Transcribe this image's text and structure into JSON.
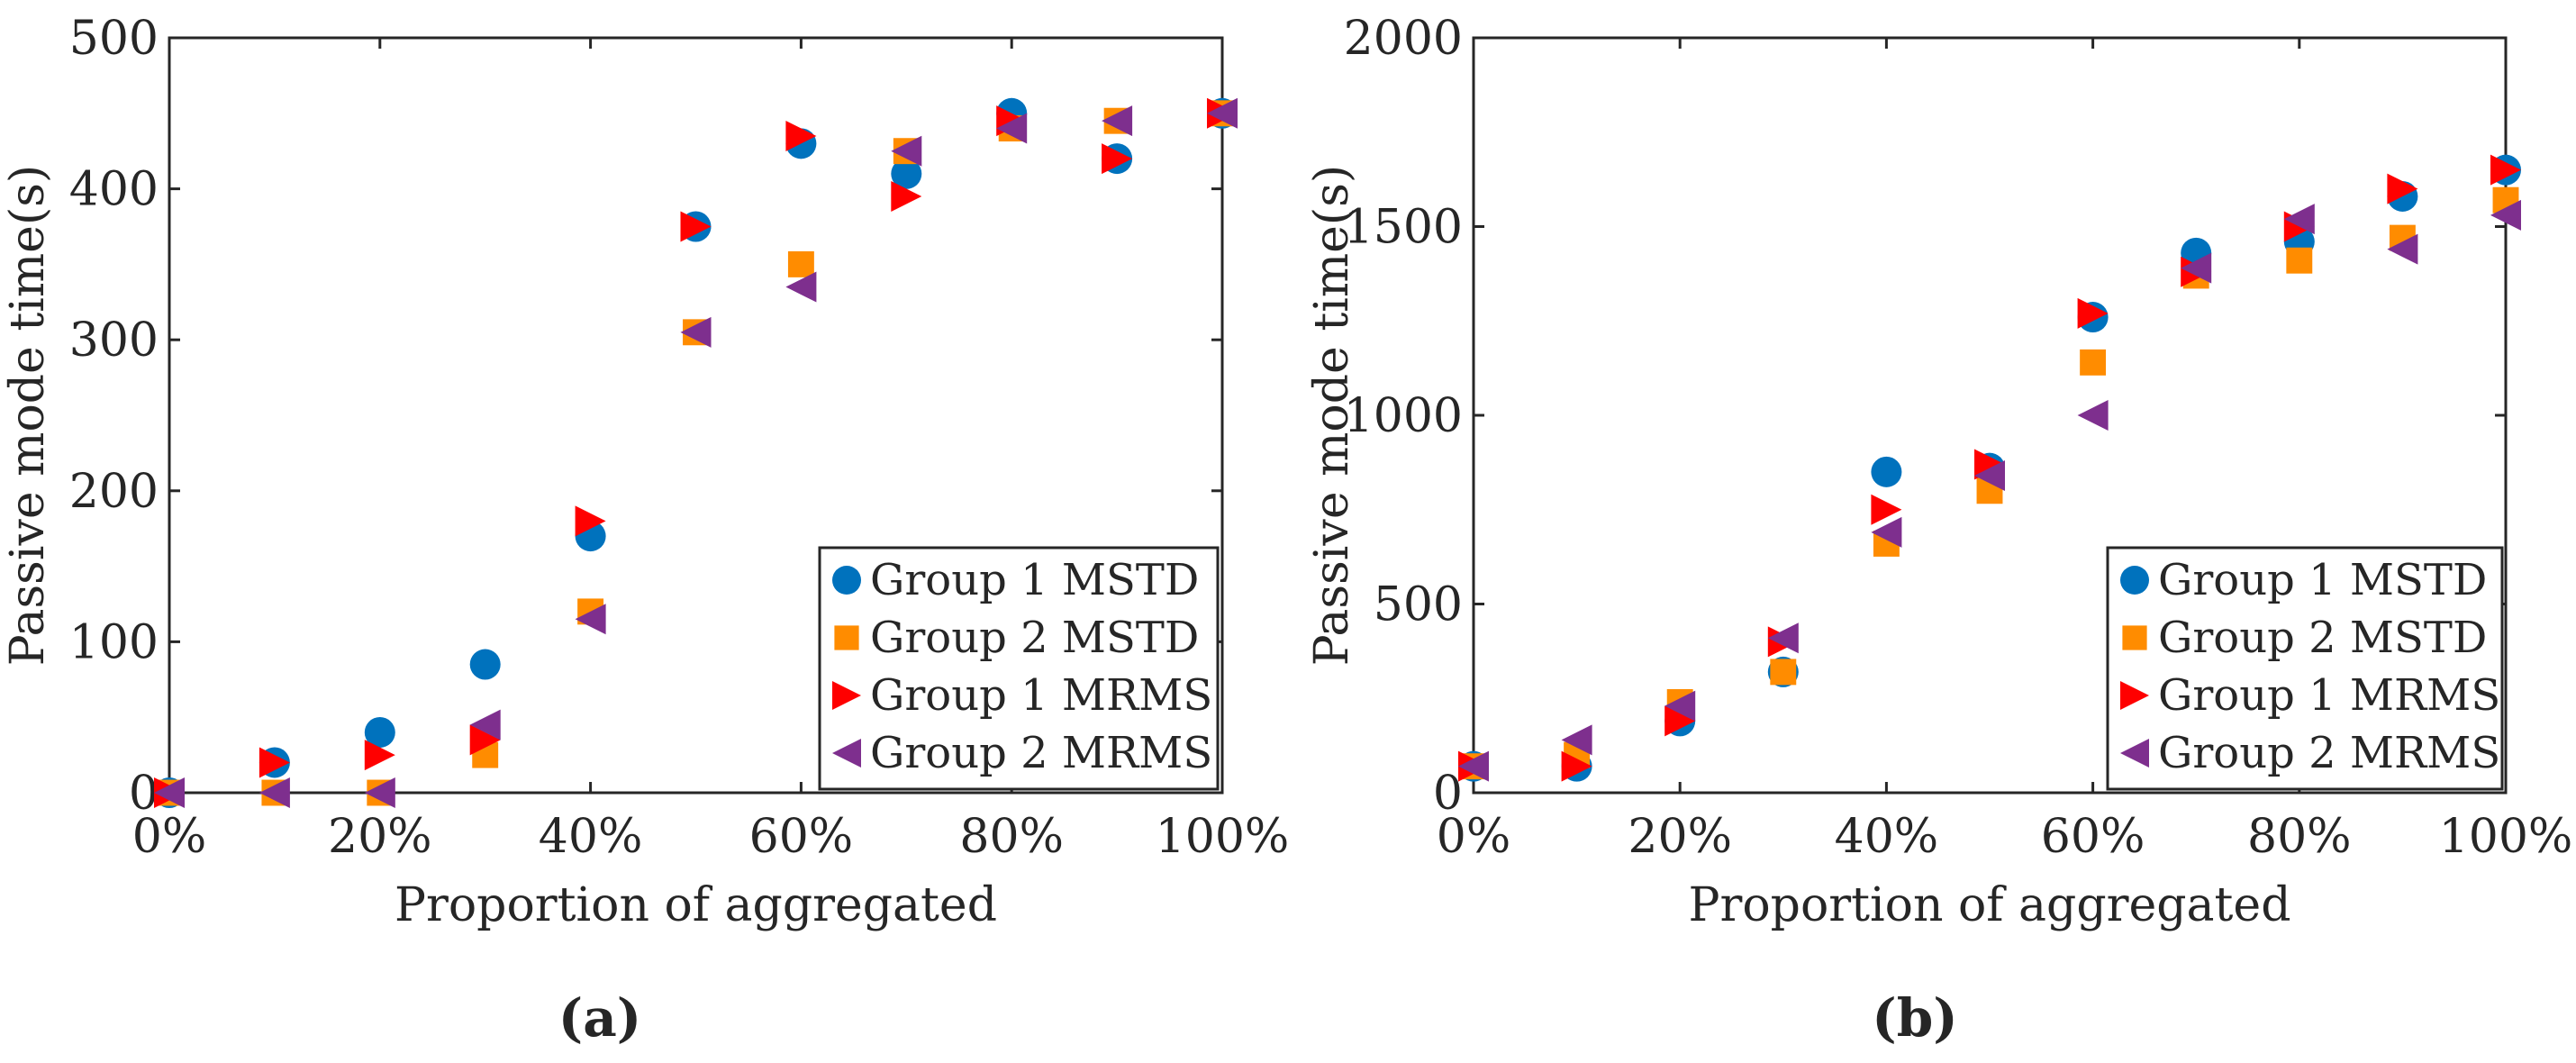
{
  "figure": {
    "captions": [
      "(a)",
      "(b)"
    ]
  },
  "chart_data": [
    {
      "type": "scatter",
      "panel": "(a)",
      "title": "",
      "xlabel": "Proportion of aggregated",
      "ylabel": "Passive mode time(s)",
      "x": [
        0,
        10,
        20,
        30,
        40,
        50,
        60,
        70,
        80,
        90,
        100
      ],
      "xticklabels": [
        "0%",
        "20%",
        "40%",
        "60%",
        "80%",
        "100%"
      ],
      "xticks": [
        0,
        20,
        40,
        60,
        80,
        100
      ],
      "xlim": [
        0,
        100
      ],
      "ylim": [
        0,
        500
      ],
      "yticks": [
        0,
        100,
        200,
        300,
        400,
        500
      ],
      "yticklabels": [
        "0",
        "100",
        "200",
        "300",
        "400",
        "500"
      ],
      "grid": false,
      "legend_position": "bottom-right",
      "series": [
        {
          "name": "Group 1 MSTD",
          "marker": "circle",
          "color": "#0072BD",
          "values": [
            0,
            20,
            40,
            85,
            170,
            375,
            430,
            410,
            450,
            420,
            450
          ]
        },
        {
          "name": "Group 2 MSTD",
          "marker": "square",
          "color": "#FF8C00",
          "values": [
            0,
            0,
            0,
            25,
            120,
            305,
            350,
            425,
            440,
            445,
            450
          ]
        },
        {
          "name": "Group 1 MRMS",
          "marker": "triangle-right",
          "color": "#FF0000",
          "values": [
            0,
            20,
            25,
            35,
            180,
            375,
            435,
            395,
            445,
            420,
            450
          ]
        },
        {
          "name": "Group 2 MRMS",
          "marker": "triangle-left",
          "color": "#7E2F8E",
          "values": [
            0,
            0,
            0,
            45,
            115,
            305,
            335,
            425,
            440,
            445,
            450
          ]
        }
      ]
    },
    {
      "type": "scatter",
      "panel": "(b)",
      "title": "",
      "xlabel": "Proportion of aggregated",
      "ylabel": "Passive mode time(s)",
      "x": [
        0,
        10,
        20,
        30,
        40,
        50,
        60,
        70,
        80,
        90,
        100
      ],
      "xticklabels": [
        "0%",
        "20%",
        "40%",
        "60%",
        "80%",
        "100%"
      ],
      "xticks": [
        0,
        20,
        40,
        60,
        80,
        100
      ],
      "xlim": [
        0,
        100
      ],
      "ylim": [
        0,
        2000
      ],
      "yticks": [
        0,
        500,
        1000,
        1500,
        2000
      ],
      "yticklabels": [
        "0",
        "500",
        "1000",
        "1500",
        "2000"
      ],
      "grid": false,
      "legend_position": "bottom-right",
      "series": [
        {
          "name": "Group 1 MSTD",
          "marker": "circle",
          "color": "#0072BD",
          "values": [
            70,
            70,
            190,
            320,
            850,
            860,
            1260,
            1430,
            1460,
            1580,
            1650
          ]
        },
        {
          "name": "Group 2 MSTD",
          "marker": "square",
          "color": "#FF8C00",
          "values": [
            70,
            100,
            240,
            320,
            660,
            800,
            1140,
            1370,
            1410,
            1470,
            1570
          ]
        },
        {
          "name": "Group 1 MRMS",
          "marker": "triangle-right",
          "color": "#FF0000",
          "values": [
            70,
            70,
            190,
            400,
            750,
            870,
            1270,
            1380,
            1500,
            1600,
            1650
          ]
        },
        {
          "name": "Group 2 MRMS",
          "marker": "triangle-left",
          "color": "#7E2F8E",
          "values": [
            70,
            140,
            230,
            410,
            690,
            840,
            1000,
            1390,
            1520,
            1440,
            1530
          ]
        }
      ]
    }
  ]
}
